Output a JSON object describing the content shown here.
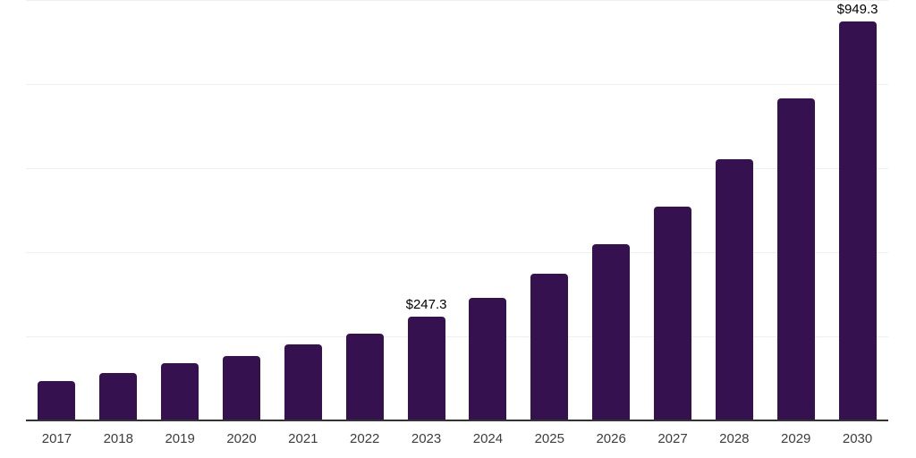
{
  "chart_data": {
    "type": "bar",
    "title": "",
    "xlabel": "",
    "ylabel": "",
    "categories": [
      "2017",
      "2018",
      "2019",
      "2020",
      "2021",
      "2022",
      "2023",
      "2024",
      "2025",
      "2026",
      "2027",
      "2028",
      "2029",
      "2030"
    ],
    "values": [
      93.5,
      112.0,
      135.5,
      153.5,
      181.0,
      207.0,
      247.3,
      291.0,
      349.0,
      418.5,
      509.0,
      621.0,
      766.0,
      949.3
    ],
    "annotations": [
      {
        "category": "2023",
        "text": "$247.3"
      },
      {
        "category": "2030",
        "text": "$949.3"
      }
    ],
    "ylim": [
      0,
      1000
    ],
    "gridline_values": [
      200,
      400,
      600,
      800,
      1000
    ],
    "grid": true,
    "legend_position": "none",
    "y_axis_tick_labels_visible": false,
    "colors": {
      "bar": "#361150",
      "grid": "#efefef",
      "axis": "#333333",
      "tick_label": "#3d3d3d",
      "value_label": "#000000",
      "background": "#ffffff"
    }
  }
}
